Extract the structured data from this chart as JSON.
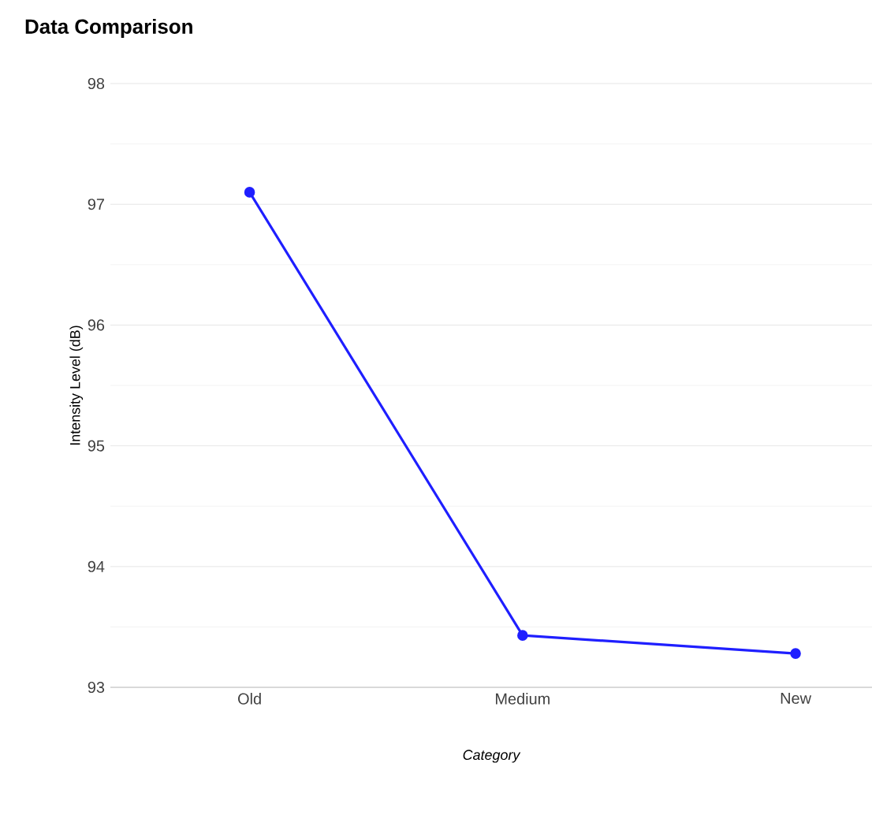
{
  "chart_data": {
    "type": "line",
    "title": "Data Comparison",
    "xlabel": "Category",
    "ylabel": "Intensity Level (dB)",
    "categories": [
      "Old",
      "Medium",
      "New"
    ],
    "series": [
      {
        "color": "#1f1fff",
        "values": [
          97.1,
          93.43,
          93.28
        ]
      }
    ],
    "ylim": [
      93,
      98
    ],
    "yticks": [
      93,
      94,
      95,
      96,
      97,
      98
    ],
    "grid": "y",
    "marker": "circle",
    "line_style": "solid"
  }
}
